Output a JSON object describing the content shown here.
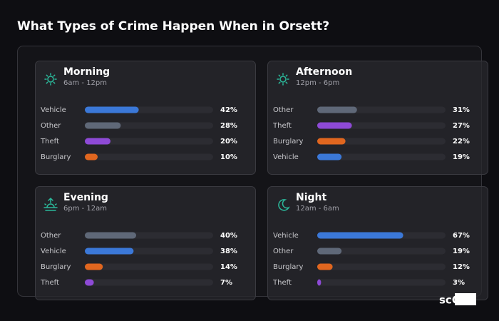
{
  "title": "What Types of Crime Happen When in Orsett?",
  "logo": "scOS",
  "chart_data": [
    {
      "type": "bar",
      "title": "Morning",
      "subtitle": "6am - 12pm",
      "categories": [
        "Vehicle",
        "Other",
        "Theft",
        "Burglary"
      ],
      "values": [
        42,
        28,
        20,
        10
      ],
      "value_labels": [
        "42%",
        "28%",
        "20%",
        "10%"
      ],
      "colors": [
        "#3b78d8",
        "#5f6878",
        "#8e4ad6",
        "#e0661f"
      ],
      "xlim": [
        0,
        100
      ]
    },
    {
      "type": "bar",
      "title": "Afternoon",
      "subtitle": "12pm - 6pm",
      "categories": [
        "Other",
        "Theft",
        "Burglary",
        "Vehicle"
      ],
      "values": [
        31,
        27,
        22,
        19
      ],
      "value_labels": [
        "31%",
        "27%",
        "22%",
        "19%"
      ],
      "colors": [
        "#5f6878",
        "#8e4ad6",
        "#e0661f",
        "#3b78d8"
      ],
      "xlim": [
        0,
        100
      ]
    },
    {
      "type": "bar",
      "title": "Evening",
      "subtitle": "6pm - 12am",
      "categories": [
        "Other",
        "Vehicle",
        "Burglary",
        "Theft"
      ],
      "values": [
        40,
        38,
        14,
        7
      ],
      "value_labels": [
        "40%",
        "38%",
        "14%",
        "7%"
      ],
      "colors": [
        "#5f6878",
        "#3b78d8",
        "#e0661f",
        "#8e4ad6"
      ],
      "xlim": [
        0,
        100
      ]
    },
    {
      "type": "bar",
      "title": "Night",
      "subtitle": "12am - 6am",
      "categories": [
        "Vehicle",
        "Other",
        "Burglary",
        "Theft"
      ],
      "values": [
        67,
        19,
        12,
        3
      ],
      "value_labels": [
        "67%",
        "19%",
        "12%",
        "3%"
      ],
      "colors": [
        "#3b78d8",
        "#5f6878",
        "#e0661f",
        "#8e4ad6"
      ],
      "xlim": [
        0,
        100
      ]
    }
  ]
}
